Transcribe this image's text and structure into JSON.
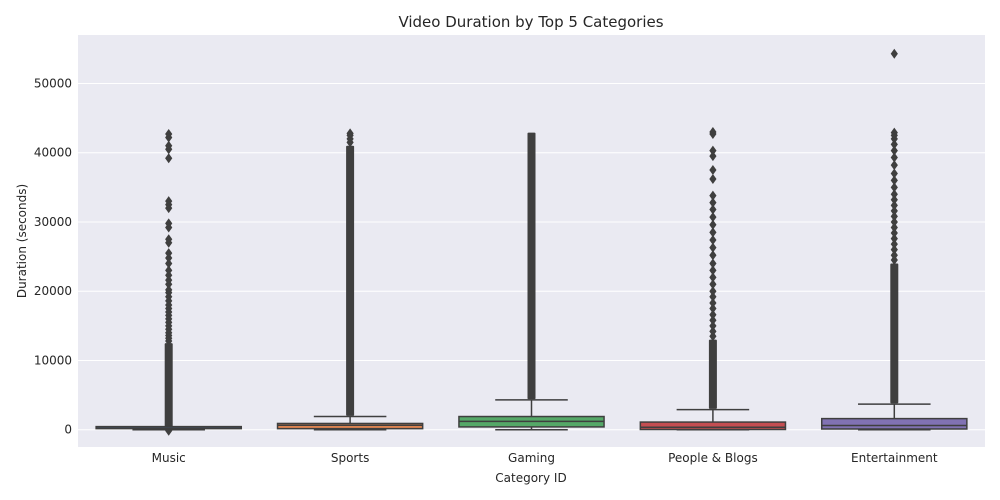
{
  "chart_data": {
    "type": "box",
    "title": "Video Duration by Top 5 Categories",
    "xlabel": "Category ID",
    "ylabel": "Duration (seconds)",
    "categories": [
      "Music",
      "Sports",
      "Gaming",
      "People & Blogs",
      "Entertainment"
    ],
    "yticks": [
      0,
      10000,
      20000,
      30000,
      40000,
      50000
    ],
    "ylim": [
      -2500,
      57000
    ],
    "grid": true,
    "colors": [
      "#4c72b0",
      "#dd8452",
      "#55a868",
      "#c44e52",
      "#8172b3"
    ],
    "box_edge_color": "#3f3f3f",
    "boxes": [
      {
        "category": "Music",
        "whisker_low": 0,
        "q1": 60,
        "median": 200,
        "q3": 300,
        "whisker_high": 300,
        "flier_range": [
          400,
          12500
        ],
        "outliers": [
          -150,
          12800,
          13200,
          13600,
          14000,
          14500,
          15000,
          15500,
          16000,
          16500,
          17000,
          17500,
          18000,
          18600,
          19200,
          19800,
          20200,
          21000,
          21600,
          22300,
          23000,
          24000,
          24800,
          25500,
          27000,
          27500,
          29200,
          29800,
          32000,
          32500,
          33000,
          39200,
          40500,
          41000,
          42200,
          42700
        ]
      },
      {
        "category": "Sports",
        "whisker_low": 0,
        "q1": 150,
        "median": 650,
        "q3": 900,
        "whisker_high": 1900,
        "flier_range": [
          2000,
          41000
        ],
        "outliers": [
          41500,
          42000,
          42500,
          42800
        ]
      },
      {
        "category": "Gaming",
        "whisker_low": 0,
        "q1": 400,
        "median": 1200,
        "q3": 1900,
        "whisker_high": 4300,
        "flier_range": [
          4400,
          42900
        ],
        "outliers": []
      },
      {
        "category": "People & Blogs",
        "whisker_low": 0,
        "q1": 30,
        "median": 350,
        "q3": 1100,
        "whisker_high": 2900,
        "flier_range": [
          3000,
          13000
        ],
        "outliers": [
          13500,
          14200,
          15000,
          15800,
          16600,
          17500,
          18300,
          19200,
          20000,
          21000,
          22000,
          23000,
          24000,
          25200,
          26300,
          27400,
          28500,
          29600,
          30700,
          31800,
          32800,
          33800,
          36200,
          37500,
          39500,
          40300,
          42700,
          43000
        ]
      },
      {
        "category": "Entertainment",
        "whisker_low": 0,
        "q1": 100,
        "median": 600,
        "q3": 1600,
        "whisker_high": 3700,
        "flier_range": [
          3800,
          24000
        ],
        "outliers": [
          24500,
          25200,
          26000,
          26800,
          27600,
          28400,
          29200,
          30000,
          30800,
          31600,
          32400,
          33200,
          34000,
          35000,
          36000,
          37000,
          38200,
          39300,
          40300,
          41200,
          42000,
          42500,
          42900,
          54300
        ]
      }
    ]
  }
}
